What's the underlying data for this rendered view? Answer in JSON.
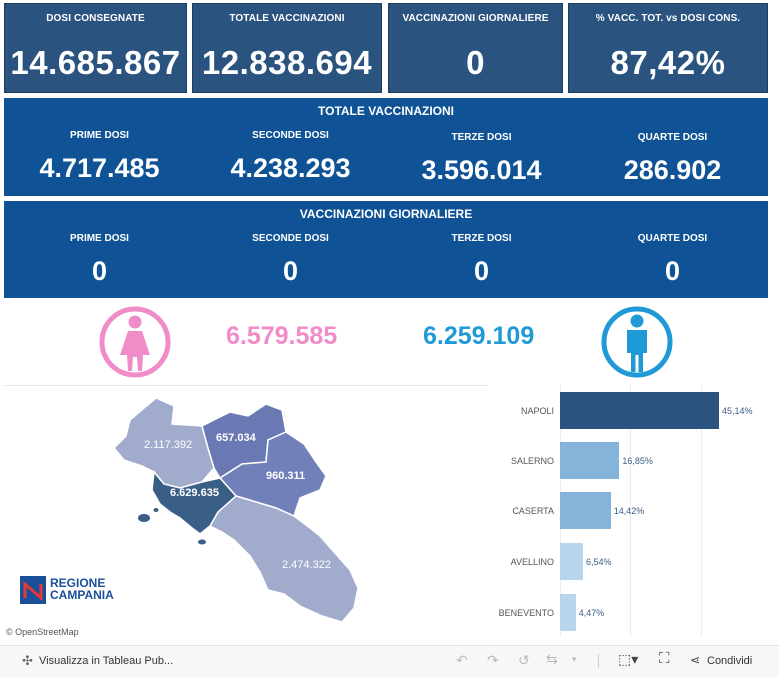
{
  "kpis": [
    {
      "label": "DOSI  CONSEGNATE",
      "value": "14.685.867"
    },
    {
      "label": "TOTALE VACCINAZIONI",
      "value": "12.838.694"
    },
    {
      "label": "VACCINAZIONI GIORNALIERE",
      "value": "0"
    },
    {
      "label": "% VACC. TOT. vs DOSI CONS.",
      "value": "87,42%"
    }
  ],
  "totale": {
    "title": "TOTALE VACCINAZIONI",
    "cells": [
      {
        "label": "PRIME DOSI",
        "value": "4.717.485"
      },
      {
        "label": "SECONDE DOSI",
        "value": "4.238.293"
      },
      {
        "label": "TERZE DOSI",
        "value": "3.596.014"
      },
      {
        "label": "QUARTE DOSI",
        "value": "286.902"
      }
    ]
  },
  "giornaliere": {
    "title": "VACCINAZIONI GIORNALIERE",
    "cells": [
      {
        "label": "PRIME DOSI",
        "value": "0"
      },
      {
        "label": "SECONDE DOSI",
        "value": "0"
      },
      {
        "label": "TERZE DOSI",
        "value": "0"
      },
      {
        "label": "QUARTE DOSI",
        "value": "0"
      }
    ]
  },
  "gender": {
    "female_value": "6.579.585",
    "male_value": "6.259.109",
    "female_color": "#f08cc8",
    "male_color": "#1f9ad6"
  },
  "map": {
    "province_values": {
      "caserta": "2.117.392",
      "benevento": "657.034",
      "avellino": "960.311",
      "napoli": "6.629.635",
      "salerno": "2.474.322"
    },
    "logo_line1": "REGIONE",
    "logo_line2": "CAMPANIA",
    "attribution": "© OpenStreetMap"
  },
  "chart_data": {
    "type": "bar",
    "orientation": "horizontal",
    "categories": [
      "NAPOLI",
      "SALERNO",
      "CASERTA",
      "AVELLINO",
      "BENEVENTO"
    ],
    "values": [
      45.14,
      16.85,
      14.42,
      6.54,
      4.47
    ],
    "value_labels": [
      "45,14%",
      "16,85%",
      "14,42%",
      "6,54%",
      "4,47%"
    ],
    "colors": [
      "#2b5380",
      "#86b3da",
      "#86b3da",
      "#b7d6ee",
      "#b7d6ee"
    ],
    "xlim": [
      0,
      50
    ],
    "grid": true
  },
  "toolbar": {
    "view_label": "Visualizza in Tableau Pub...",
    "share_label": "Condividi"
  }
}
